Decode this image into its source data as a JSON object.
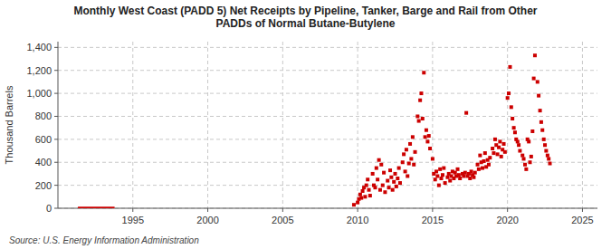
{
  "chart_data": {
    "type": "scatter",
    "title": "Monthly West Coast (PADD 5) Net Receipts by Pipeline, Tanker, Barge and Rail from Other\nPADDs of Normal Butane-Butylene",
    "ylabel": "Thousand Barrels",
    "source": "Source: U.S. Energy Information Administration",
    "xlim": [
      1990,
      2026
    ],
    "ylim": [
      0,
      1450
    ],
    "xticks": [
      1995,
      2000,
      2005,
      2010,
      2015,
      2020,
      2025
    ],
    "yticks": [
      0,
      200,
      400,
      600,
      800,
      {
        "value": 1000,
        "label": "1,000"
      },
      {
        "value": 1200,
        "label": "1,200"
      },
      {
        "value": 1400,
        "label": "1,400"
      }
    ],
    "grid": true,
    "series": [
      {
        "type": "line",
        "color": "#CC0000",
        "x": [
          1991.332,
          1993.78
        ],
        "values": [
          2,
          2
        ]
      },
      {
        "type": "scatter",
        "color": "#CC0000",
        "marker": "square",
        "x": [
          2009.75,
          2010.0,
          2010.08,
          2010.17,
          2010.25,
          2010.33,
          2010.42,
          2010.5,
          2010.58,
          2010.67,
          2010.75,
          2010.83,
          2011.0,
          2011.08,
          2011.17,
          2011.25,
          2011.33,
          2011.42,
          2011.5,
          2011.58,
          2011.67,
          2011.75,
          2011.83,
          2012.0,
          2012.08,
          2012.17,
          2012.25,
          2012.33,
          2012.42,
          2012.5,
          2012.58,
          2012.67,
          2012.75,
          2012.83,
          2013.0,
          2013.08,
          2013.17,
          2013.25,
          2013.33,
          2013.42,
          2013.5,
          2013.58,
          2013.67,
          2013.75,
          2013.83,
          2014.0,
          2014.08,
          2014.17,
          2014.25,
          2014.33,
          2014.42,
          2014.5,
          2014.58,
          2014.67,
          2014.75,
          2014.83,
          2015.0,
          2015.08,
          2015.17,
          2015.25,
          2015.33,
          2015.42,
          2015.5,
          2015.58,
          2015.67,
          2015.75,
          2015.83,
          2016.0,
          2016.08,
          2016.17,
          2016.25,
          2016.33,
          2016.42,
          2016.5,
          2016.58,
          2016.67,
          2016.75,
          2016.83,
          2017.0,
          2017.08,
          2017.17,
          2017.25,
          2017.33,
          2017.42,
          2017.5,
          2017.58,
          2017.67,
          2017.75,
          2017.83,
          2018.0,
          2018.08,
          2018.17,
          2018.25,
          2018.33,
          2018.42,
          2018.5,
          2018.58,
          2018.67,
          2018.75,
          2018.83,
          2019.0,
          2019.08,
          2019.17,
          2019.25,
          2019.33,
          2019.42,
          2019.5,
          2019.58,
          2019.67,
          2019.75,
          2019.83,
          2020.0,
          2020.08,
          2020.17,
          2020.25,
          2020.33,
          2020.42,
          2020.5,
          2020.58,
          2020.67,
          2020.75,
          2020.83,
          2021.0,
          2021.08,
          2021.17,
          2021.25,
          2021.33,
          2021.42,
          2021.5,
          2021.58,
          2021.67,
          2021.75,
          2021.83,
          2022.0,
          2022.08,
          2022.17,
          2022.25,
          2022.33,
          2022.42,
          2022.5,
          2022.58,
          2022.67,
          2022.75,
          2022.83
        ],
        "values": [
          30,
          50,
          80,
          120,
          90,
          150,
          180,
          100,
          200,
          250,
          160,
          110,
          300,
          200,
          180,
          350,
          250,
          420,
          160,
          380,
          200,
          310,
          140,
          240,
          180,
          330,
          270,
          160,
          230,
          300,
          190,
          260,
          350,
          220,
          400,
          470,
          320,
          510,
          280,
          390,
          560,
          430,
          620,
          380,
          490,
          800,
          760,
          940,
          1000,
          780,
          1180,
          620,
          680,
          580,
          630,
          520,
          430,
          300,
          250,
          320,
          280,
          200,
          340,
          260,
          290,
          350,
          220,
          270,
          300,
          240,
          280,
          320,
          260,
          310,
          280,
          340,
          290,
          260,
          300,
          280,
          310,
          830,
          280,
          300,
          260,
          320,
          290,
          270,
          310,
          380,
          340,
          460,
          400,
          350,
          410,
          480,
          360,
          420,
          380,
          440,
          520,
          480,
          600,
          550,
          470,
          530,
          580,
          450,
          510,
          560,
          490,
          960,
          1000,
          1230,
          880,
          780,
          700,
          660,
          600,
          580,
          550,
          500,
          460,
          430,
          380,
          340,
          600,
          580,
          400,
          450,
          670,
          1130,
          1330,
          1100,
          980,
          850,
          750,
          680,
          600,
          550,
          500,
          460,
          430,
          390
        ]
      }
    ]
  }
}
